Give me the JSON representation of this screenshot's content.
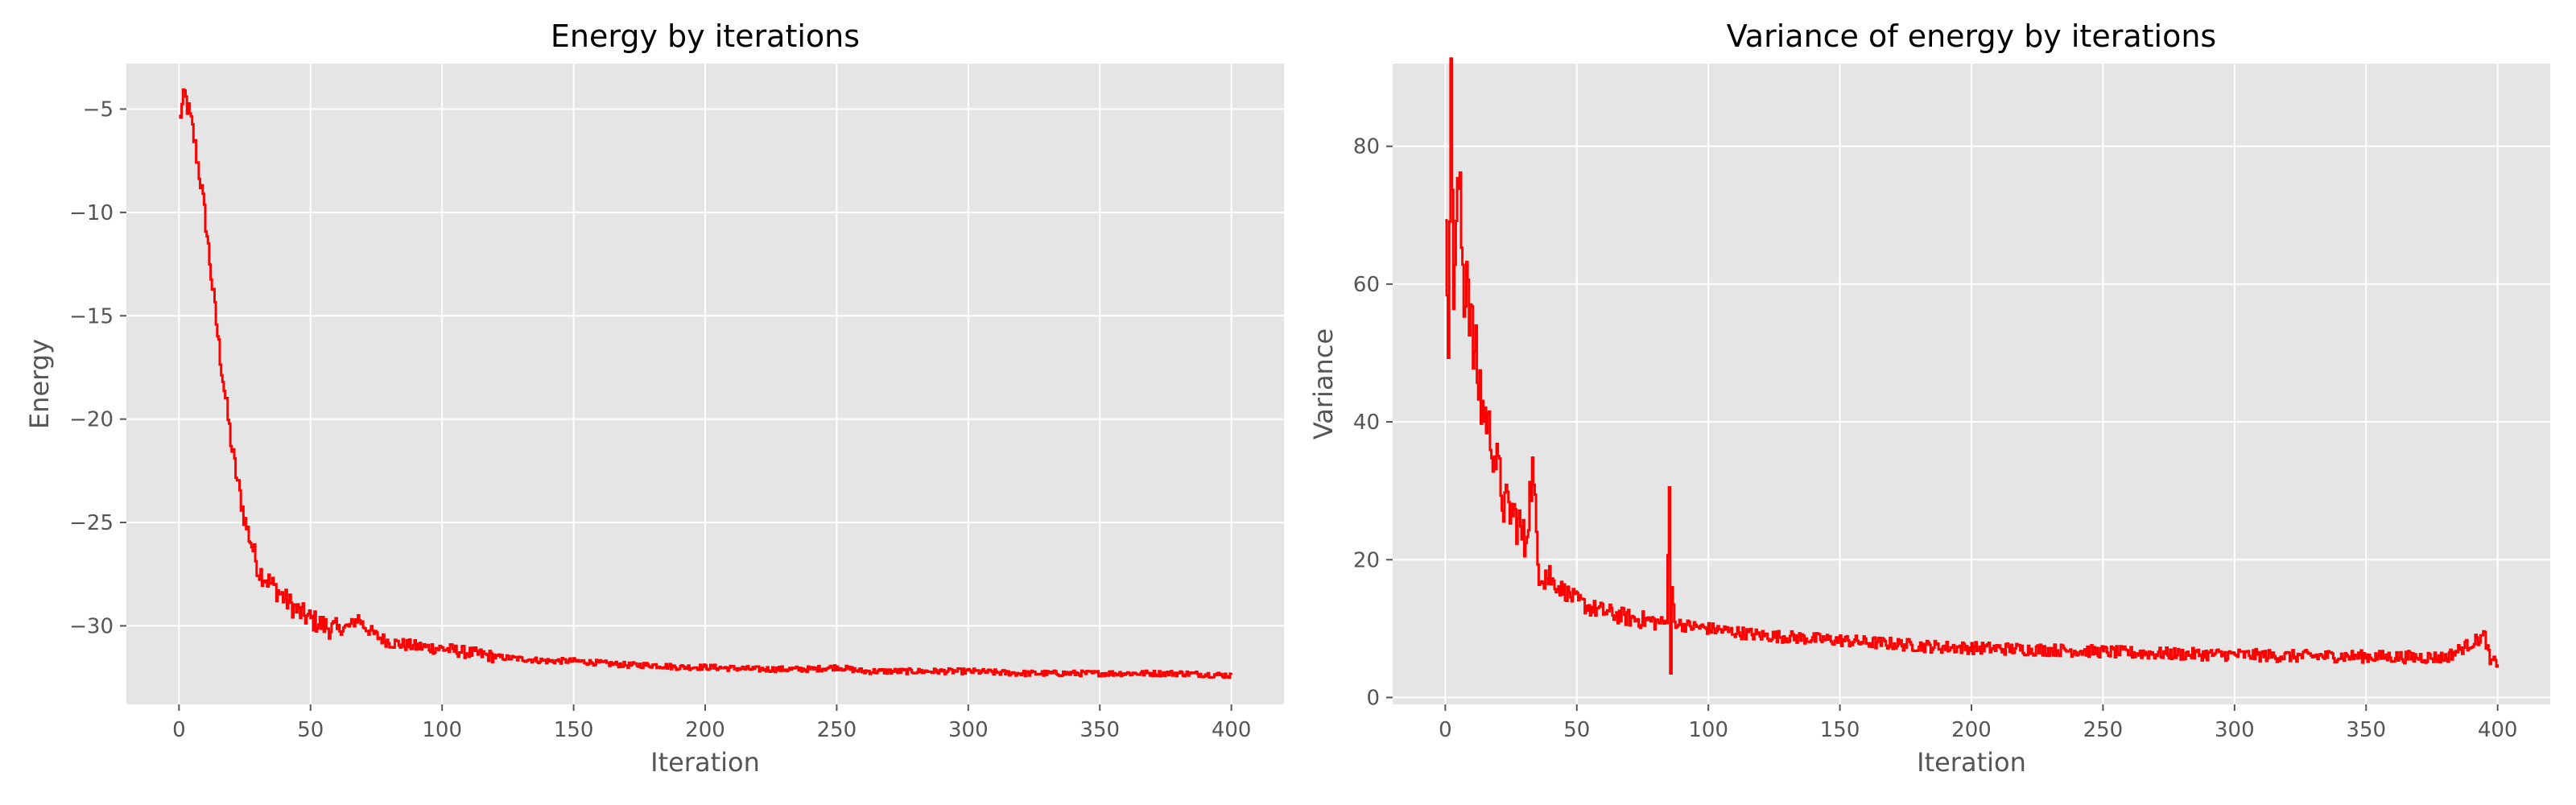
{
  "colors": {
    "line": "#ff0000",
    "panel_bg": "#e5e5e5",
    "grid": "#ffffff",
    "tick_text": "#555555",
    "title_text": "#000000"
  },
  "chart_data": [
    {
      "type": "line",
      "title": "Energy by iterations",
      "xlabel": "Iteration",
      "ylabel": "Energy",
      "xlim": [
        -20,
        420
      ],
      "ylim": [
        -33.8,
        -2.8
      ],
      "xticks": [
        0,
        50,
        100,
        150,
        200,
        250,
        300,
        350,
        400
      ],
      "xtick_labels": [
        "0",
        "50",
        "100",
        "150",
        "200",
        "250",
        "300",
        "350",
        "400"
      ],
      "yticks": [
        -5,
        -10,
        -15,
        -20,
        -25,
        -30
      ],
      "ytick_labels": [
        "−5",
        "−10",
        "−15",
        "−20",
        "−25",
        "−30"
      ],
      "grid": true,
      "series": [
        {
          "color": "#ff0000",
          "x": [
            0,
            2,
            5,
            8,
            10,
            12,
            15,
            18,
            20,
            22,
            25,
            28,
            30,
            35,
            40,
            45,
            50,
            55,
            60,
            65,
            68,
            70,
            75,
            80,
            90,
            100,
            110,
            120,
            130,
            140,
            150,
            160,
            170,
            180,
            190,
            200,
            220,
            240,
            250,
            260,
            280,
            300,
            320,
            340,
            360,
            380,
            400
          ],
          "y": [
            -5.5,
            -4.3,
            -6.0,
            -8.5,
            -10.5,
            -13.0,
            -16.5,
            -19.5,
            -21.5,
            -23.0,
            -25.0,
            -26.3,
            -27.3,
            -28.0,
            -28.7,
            -29.3,
            -29.7,
            -30.0,
            -30.2,
            -30.0,
            -29.6,
            -30.0,
            -30.5,
            -30.8,
            -31.0,
            -31.1,
            -31.3,
            -31.5,
            -31.6,
            -31.7,
            -31.7,
            -31.8,
            -31.9,
            -31.9,
            -32.0,
            -32.0,
            -32.1,
            -32.1,
            -32.0,
            -32.2,
            -32.2,
            -32.2,
            -32.3,
            -32.3,
            -32.3,
            -32.3,
            -32.4
          ]
        }
      ]
    },
    {
      "type": "line",
      "title": "Variance of energy by iterations",
      "xlabel": "Iteration",
      "ylabel": "Variance",
      "xlim": [
        -20,
        420
      ],
      "ylim": [
        -1,
        92
      ],
      "xticks": [
        0,
        50,
        100,
        150,
        200,
        250,
        300,
        350,
        400
      ],
      "xtick_labels": [
        "0",
        "50",
        "100",
        "150",
        "200",
        "250",
        "300",
        "350",
        "400"
      ],
      "yticks": [
        0,
        20,
        40,
        60,
        80
      ],
      "ytick_labels": [
        "0",
        "20",
        "40",
        "60",
        "80"
      ],
      "grid": true,
      "series": [
        {
          "color": "#ff0000",
          "x": [
            0,
            1,
            2,
            3,
            5,
            7,
            8,
            10,
            12,
            14,
            16,
            18,
            20,
            22,
            25,
            28,
            30,
            33,
            35,
            40,
            45,
            50,
            55,
            60,
            70,
            80,
            84,
            85,
            85.5,
            86,
            87,
            90,
            100,
            110,
            120,
            130,
            140,
            150,
            160,
            170,
            180,
            190,
            200,
            220,
            240,
            260,
            280,
            300,
            320,
            340,
            360,
            380,
            395,
            397,
            400
          ],
          "y": [
            72,
            55,
            88,
            60,
            75,
            58,
            64,
            52,
            47,
            42,
            40,
            36,
            33,
            28,
            27,
            25,
            22,
            33,
            20,
            17,
            15.5,
            14,
            13,
            12.5,
            11.5,
            11,
            10.8,
            30.5,
            3.5,
            16,
            11,
            10.5,
            10,
            9.5,
            9,
            8.8,
            8.5,
            8.3,
            8,
            7.8,
            7.5,
            7.3,
            7.2,
            7,
            6.8,
            6.5,
            6.3,
            6.2,
            6,
            6,
            5.9,
            5.8,
            9,
            5,
            5.2
          ]
        }
      ]
    }
  ]
}
